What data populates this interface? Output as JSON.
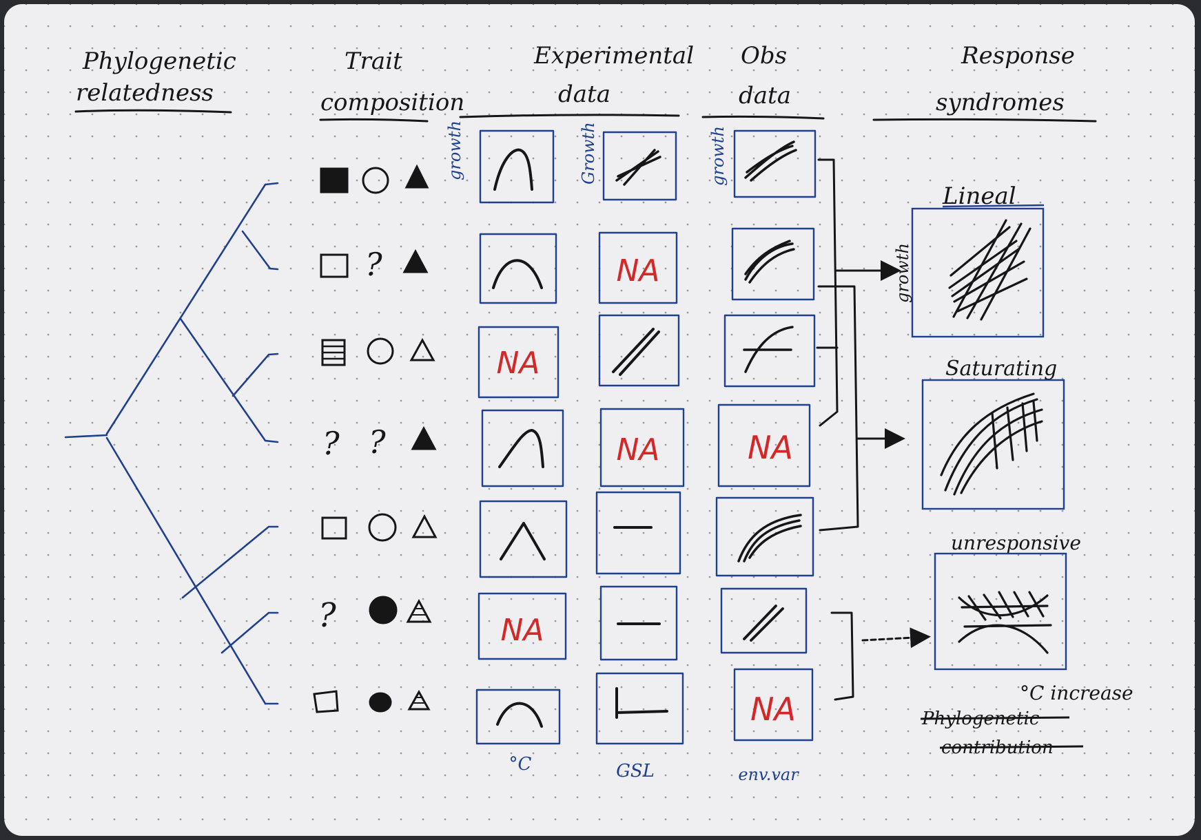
{
  "headers": {
    "phylo_line1": "Phylogenetic",
    "phylo_line2": "relatedness",
    "trait_line1": "Trait",
    "trait_line2": "composition",
    "exp_line1": "Experimental",
    "exp_line2": "data",
    "obs_line1": "Obs",
    "obs_line2": "data",
    "resp_line1": "Response",
    "resp_line2": "syndromes"
  },
  "axis_labels": {
    "exp_temp_y": "growth",
    "exp_gsl_y": "Growth",
    "obs_y": "growth",
    "linear_y": "growth",
    "exp_temp_x": "°C",
    "exp_gsl_x": "GSL",
    "obs_x": "env.var"
  },
  "na_label": "NA",
  "syndromes": {
    "linear": "Lineal",
    "saturating": "Saturating",
    "unresponsive": "unresponsive"
  },
  "footer": {
    "c_increase": "°C increase",
    "struck_line1": "Phylogenetic",
    "struck_line2": "contribution"
  },
  "colors": {
    "paper": "#efeff1",
    "ink_black": "#161616",
    "ink_blue": "#1f3f8f",
    "ink_red": "#d42828"
  }
}
